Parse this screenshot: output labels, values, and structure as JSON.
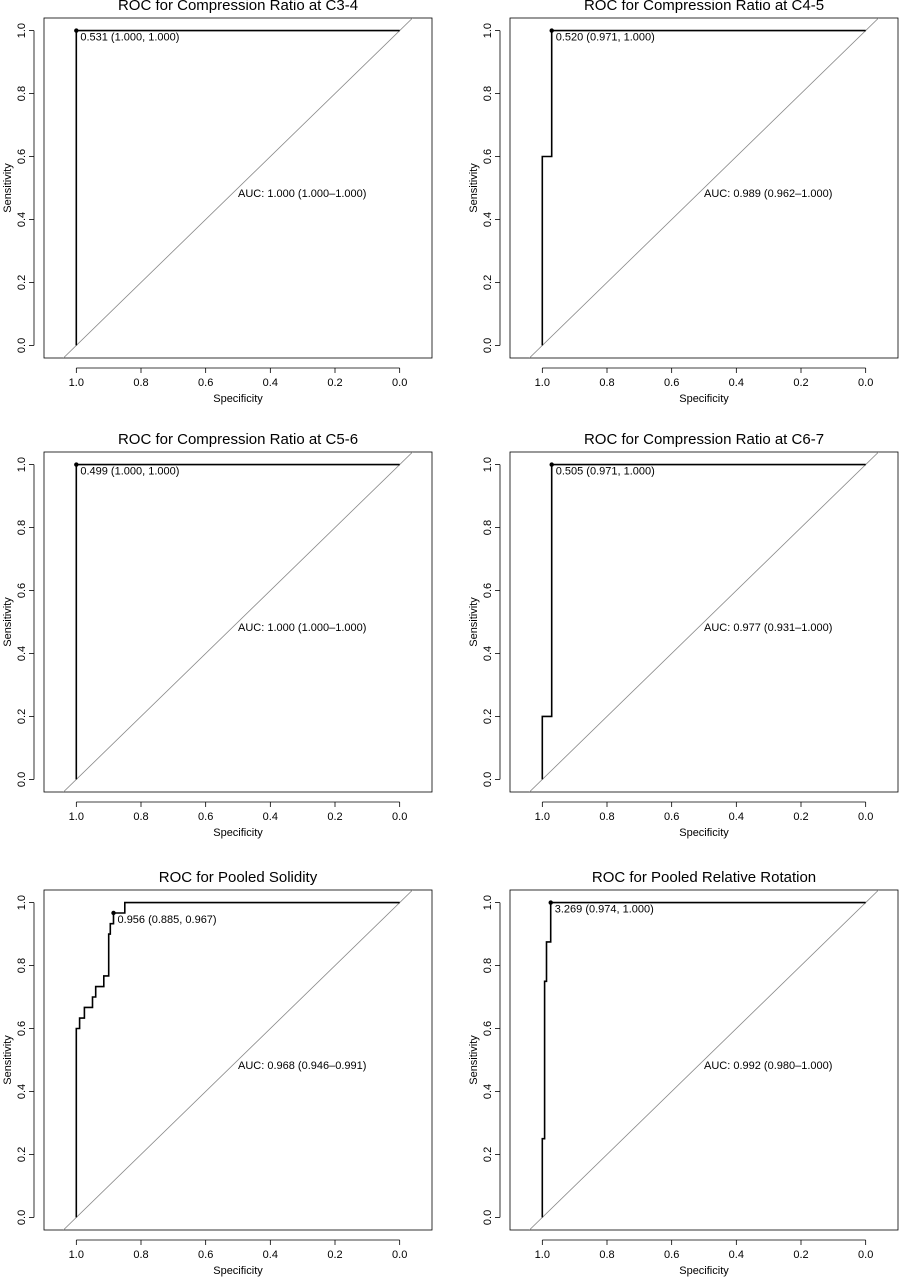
{
  "chart_data": [
    {
      "type": "line",
      "title": "ROC for Compression Ratio at C3-4",
      "xlabel": "Specificity",
      "ylabel": "Sensitivity",
      "x_reversed": true,
      "xlim": [
        1.1,
        -0.1
      ],
      "ylim": [
        0,
        1
      ],
      "x_ticks": [
        "1.0",
        "0.8",
        "0.6",
        "0.4",
        "0.2",
        "0.0"
      ],
      "y_ticks": [
        "0.0",
        "0.2",
        "0.4",
        "0.6",
        "0.8",
        "1.0"
      ],
      "reference_line": "diagonal",
      "series": [
        {
          "values": [
            [
              1.0,
              0.0
            ],
            [
              1.0,
              1.0
            ],
            [
              0.0,
              1.0
            ]
          ]
        }
      ],
      "threshold_point": {
        "specificity": 1.0,
        "sensitivity": 1.0,
        "label": "0.531 (1.000, 1.000)"
      },
      "auc_text": "AUC: 1.000 (1.000–1.000)",
      "auc_position": [
        0.5,
        0.48
      ]
    },
    {
      "type": "line",
      "title": "ROC for Compression Ratio at C4-5",
      "xlabel": "Specificity",
      "ylabel": "Sensitivity",
      "x_reversed": true,
      "xlim": [
        1.1,
        -0.1
      ],
      "ylim": [
        0,
        1
      ],
      "x_ticks": [
        "1.0",
        "0.8",
        "0.6",
        "0.4",
        "0.2",
        "0.0"
      ],
      "y_ticks": [
        "0.0",
        "0.2",
        "0.4",
        "0.6",
        "0.8",
        "1.0"
      ],
      "reference_line": "diagonal",
      "series": [
        {
          "values": [
            [
              1.0,
              0.0
            ],
            [
              1.0,
              0.6
            ],
            [
              0.971,
              0.6
            ],
            [
              0.971,
              1.0
            ],
            [
              0.0,
              1.0
            ]
          ]
        }
      ],
      "threshold_point": {
        "specificity": 0.971,
        "sensitivity": 1.0,
        "label": "0.520 (0.971, 1.000)"
      },
      "auc_text": "AUC: 0.989 (0.962–1.000)",
      "auc_position": [
        0.5,
        0.48
      ]
    },
    {
      "type": "line",
      "title": "ROC for Compression Ratio at C5-6",
      "xlabel": "Specificity",
      "ylabel": "Sensitivity",
      "x_reversed": true,
      "xlim": [
        1.1,
        -0.1
      ],
      "ylim": [
        0,
        1
      ],
      "x_ticks": [
        "1.0",
        "0.8",
        "0.6",
        "0.4",
        "0.2",
        "0.0"
      ],
      "y_ticks": [
        "0.0",
        "0.2",
        "0.4",
        "0.6",
        "0.8",
        "1.0"
      ],
      "reference_line": "diagonal",
      "series": [
        {
          "values": [
            [
              1.0,
              0.0
            ],
            [
              1.0,
              1.0
            ],
            [
              0.0,
              1.0
            ]
          ]
        }
      ],
      "threshold_point": {
        "specificity": 1.0,
        "sensitivity": 1.0,
        "label": "0.499 (1.000, 1.000)"
      },
      "auc_text": "AUC: 1.000 (1.000–1.000)",
      "auc_position": [
        0.5,
        0.48
      ]
    },
    {
      "type": "line",
      "title": "ROC for Compression Ratio at C6-7",
      "xlabel": "Specificity",
      "ylabel": "Sensitivity",
      "x_reversed": true,
      "xlim": [
        1.1,
        -0.1
      ],
      "ylim": [
        0,
        1
      ],
      "x_ticks": [
        "1.0",
        "0.8",
        "0.6",
        "0.4",
        "0.2",
        "0.0"
      ],
      "y_ticks": [
        "0.0",
        "0.2",
        "0.4",
        "0.6",
        "0.8",
        "1.0"
      ],
      "reference_line": "diagonal",
      "series": [
        {
          "values": [
            [
              1.0,
              0.0
            ],
            [
              1.0,
              0.2
            ],
            [
              0.971,
              0.2
            ],
            [
              0.971,
              1.0
            ],
            [
              0.0,
              1.0
            ]
          ]
        }
      ],
      "threshold_point": {
        "specificity": 0.971,
        "sensitivity": 1.0,
        "label": "0.505 (0.971, 1.000)"
      },
      "auc_text": "AUC: 0.977 (0.931–1.000)",
      "auc_position": [
        0.5,
        0.48
      ]
    },
    {
      "type": "line",
      "title": "ROC for Pooled Solidity",
      "xlabel": "Specificity",
      "ylabel": "Sensitivity",
      "x_reversed": true,
      "xlim": [
        1.1,
        -0.1
      ],
      "ylim": [
        0,
        1
      ],
      "x_ticks": [
        "1.0",
        "0.8",
        "0.6",
        "0.4",
        "0.2",
        "0.0"
      ],
      "y_ticks": [
        "0.0",
        "0.2",
        "0.4",
        "0.6",
        "0.8",
        "1.0"
      ],
      "reference_line": "diagonal",
      "series": [
        {
          "values": [
            [
              1.0,
              0.0
            ],
            [
              1.0,
              0.6
            ],
            [
              0.99,
              0.6
            ],
            [
              0.99,
              0.633
            ],
            [
              0.975,
              0.633
            ],
            [
              0.975,
              0.667
            ],
            [
              0.95,
              0.667
            ],
            [
              0.95,
              0.7
            ],
            [
              0.94,
              0.7
            ],
            [
              0.94,
              0.733
            ],
            [
              0.915,
              0.733
            ],
            [
              0.915,
              0.767
            ],
            [
              0.9,
              0.767
            ],
            [
              0.9,
              0.9
            ],
            [
              0.895,
              0.9
            ],
            [
              0.895,
              0.933
            ],
            [
              0.885,
              0.933
            ],
            [
              0.885,
              0.967
            ],
            [
              0.85,
              0.967
            ],
            [
              0.85,
              1.0
            ],
            [
              0.0,
              1.0
            ]
          ]
        }
      ],
      "threshold_point": {
        "specificity": 0.885,
        "sensitivity": 0.967,
        "label": "0.956 (0.885, 0.967)"
      },
      "auc_text": "AUC: 0.968 (0.946–0.991)",
      "auc_position": [
        0.5,
        0.48
      ]
    },
    {
      "type": "line",
      "title": "ROC for Pooled Relative Rotation",
      "xlabel": "Specificity",
      "ylabel": "Sensitivity",
      "x_reversed": true,
      "xlim": [
        1.1,
        -0.1
      ],
      "ylim": [
        0,
        1
      ],
      "x_ticks": [
        "1.0",
        "0.8",
        "0.6",
        "0.4",
        "0.2",
        "0.0"
      ],
      "y_ticks": [
        "0.0",
        "0.2",
        "0.4",
        "0.6",
        "0.8",
        "1.0"
      ],
      "reference_line": "diagonal",
      "series": [
        {
          "values": [
            [
              1.0,
              0.0
            ],
            [
              1.0,
              0.25
            ],
            [
              0.993,
              0.25
            ],
            [
              0.993,
              0.75
            ],
            [
              0.987,
              0.75
            ],
            [
              0.987,
              0.875
            ],
            [
              0.974,
              0.875
            ],
            [
              0.974,
              1.0
            ],
            [
              0.0,
              1.0
            ]
          ]
        }
      ],
      "threshold_point": {
        "specificity": 0.974,
        "sensitivity": 1.0,
        "label": "3.269 (0.974, 1.000)"
      },
      "auc_text": "AUC: 0.992 (0.980–1.000)",
      "auc_position": [
        0.5,
        0.48
      ]
    }
  ]
}
